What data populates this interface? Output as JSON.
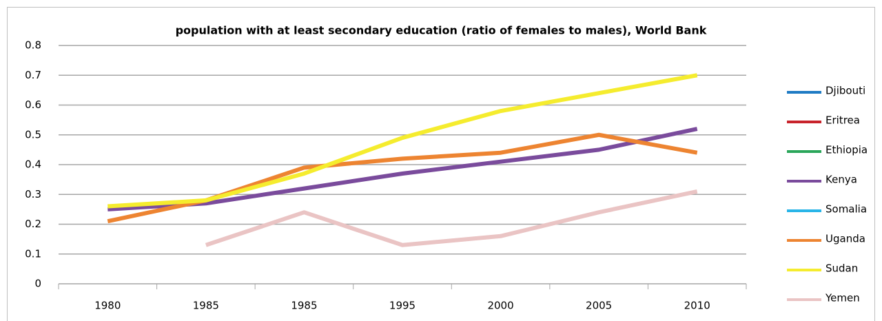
{
  "chart_data": {
    "type": "line",
    "title": "population with at least secondary education (ratio of females to males), World Bank",
    "categories": [
      "1980",
      "1985",
      "1985",
      "1995",
      "2000",
      "2005",
      "2010"
    ],
    "series": [
      {
        "name": "Djibouti",
        "color": "#1f7bc4",
        "values": [
          null,
          null,
          null,
          null,
          null,
          null,
          null
        ]
      },
      {
        "name": "Eritrea",
        "color": "#c8232b",
        "values": [
          null,
          null,
          null,
          null,
          null,
          null,
          null
        ]
      },
      {
        "name": "Ethiopia",
        "color": "#2aa65a",
        "values": [
          null,
          null,
          null,
          null,
          null,
          null,
          null
        ]
      },
      {
        "name": "Kenya",
        "color": "#7a4b9c",
        "values": [
          0.25,
          0.27,
          0.32,
          0.37,
          0.41,
          0.45,
          0.52
        ]
      },
      {
        "name": "Somalia",
        "color": "#29b5e8",
        "values": [
          null,
          null,
          null,
          null,
          null,
          null,
          null
        ]
      },
      {
        "name": "Uganda",
        "color": "#ed8431",
        "values": [
          0.21,
          0.28,
          0.39,
          0.42,
          0.44,
          0.5,
          0.44
        ]
      },
      {
        "name": "Sudan",
        "color": "#f5ec2e",
        "values": [
          0.26,
          0.28,
          0.37,
          0.49,
          0.58,
          0.64,
          0.7
        ]
      },
      {
        "name": "Yemen",
        "color": "#eac4c4",
        "values": [
          null,
          0.13,
          0.24,
          0.13,
          0.16,
          0.24,
          0.31
        ]
      }
    ],
    "ylim": [
      0,
      0.8
    ],
    "yticks": [
      0,
      0.1,
      0.2,
      0.3,
      0.4,
      0.5,
      0.6,
      0.7,
      0.8
    ],
    "grid": true,
    "legend": "right"
  }
}
